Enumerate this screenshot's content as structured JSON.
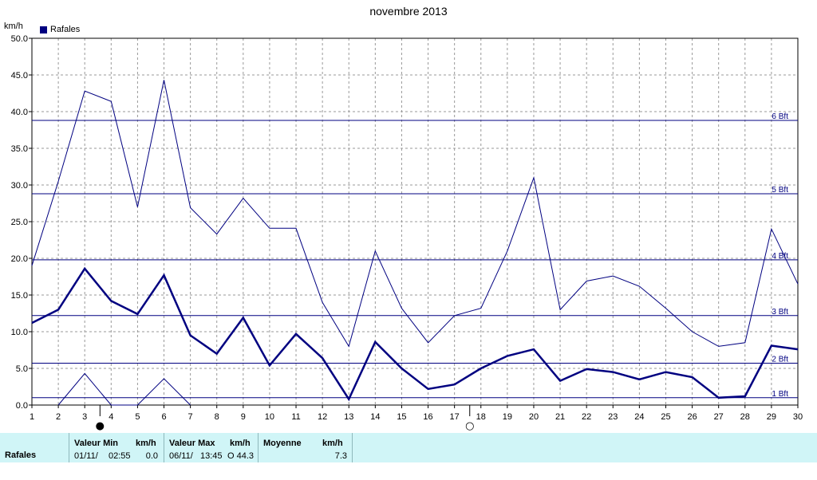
{
  "chart_data": {
    "type": "line",
    "title": "novembre 2013",
    "ylabel": "km/h",
    "legend": "Rafales",
    "legend_position": "top-left",
    "grid": true,
    "ylim": [
      0,
      50
    ],
    "yticks": [
      "0.0",
      "5.0",
      "10.0",
      "15.0",
      "20.0",
      "25.0",
      "30.0",
      "35.0",
      "40.0",
      "45.0",
      "50.0"
    ],
    "x": [
      1,
      2,
      3,
      4,
      5,
      6,
      7,
      8,
      9,
      10,
      11,
      12,
      13,
      14,
      15,
      16,
      17,
      18,
      19,
      20,
      21,
      22,
      23,
      24,
      25,
      26,
      27,
      28,
      29,
      30
    ],
    "series": [
      {
        "name": "Rafales",
        "role": "max",
        "values": [
          19.0,
          30.5,
          42.8,
          41.4,
          27.0,
          44.3,
          26.9,
          23.3,
          28.2,
          24.1,
          24.1,
          14.0,
          8.0,
          21.0,
          13.2,
          8.5,
          12.2,
          13.2,
          21.0,
          31.0,
          13.0,
          16.9,
          17.6,
          16.2,
          13.2,
          10.0,
          8.0,
          8.5,
          24.0,
          16.5
        ]
      },
      {
        "name": "Rafales",
        "role": "average",
        "values": [
          11.2,
          13.0,
          18.6,
          14.2,
          12.4,
          17.7,
          9.5,
          7.0,
          11.9,
          5.4,
          9.7,
          6.4,
          0.8,
          8.6,
          5.0,
          2.2,
          2.8,
          5.0,
          6.7,
          7.6,
          3.3,
          4.9,
          4.5,
          3.5,
          4.5,
          3.8,
          1.0,
          1.2,
          8.1,
          7.6
        ]
      },
      {
        "name": "Rafales",
        "role": "min",
        "values": [
          null,
          0.0,
          4.3,
          0.0,
          0.0,
          3.6,
          0.0,
          null,
          null,
          null,
          null,
          null,
          null,
          null,
          null,
          null,
          null,
          null,
          null,
          null,
          null,
          null,
          null,
          null,
          null,
          null,
          null,
          null,
          null,
          null
        ]
      }
    ],
    "beaufort_lines": [
      {
        "label": "1 Bft",
        "value": 1.0
      },
      {
        "label": "2 Bft",
        "value": 5.7
      },
      {
        "label": "3 Bft",
        "value": 12.2
      },
      {
        "label": "4 Bft",
        "value": 19.8
      },
      {
        "label": "5 Bft",
        "value": 28.8
      },
      {
        "label": "6 Bft",
        "value": 38.8
      }
    ],
    "moon_phases": [
      {
        "day": 4,
        "symbol": "●"
      },
      {
        "day": 18,
        "symbol": "○"
      }
    ],
    "colors": {
      "series": "#000080",
      "grid": "#999999",
      "axis": "#000000"
    }
  },
  "summary": {
    "row_label": "Rafales",
    "min_header": "Valeur Min",
    "min_unit": "km/h",
    "min_date": "01/11/",
    "min_time": "02:55",
    "min_value": "0.0",
    "max_header": "Valeur Max",
    "max_unit": "km/h",
    "max_date": "06/11/",
    "max_time": "13:45",
    "max_value": "O 44.3",
    "avg_header": "Moyenne",
    "avg_unit": "km/h",
    "avg_value": "7.3"
  }
}
